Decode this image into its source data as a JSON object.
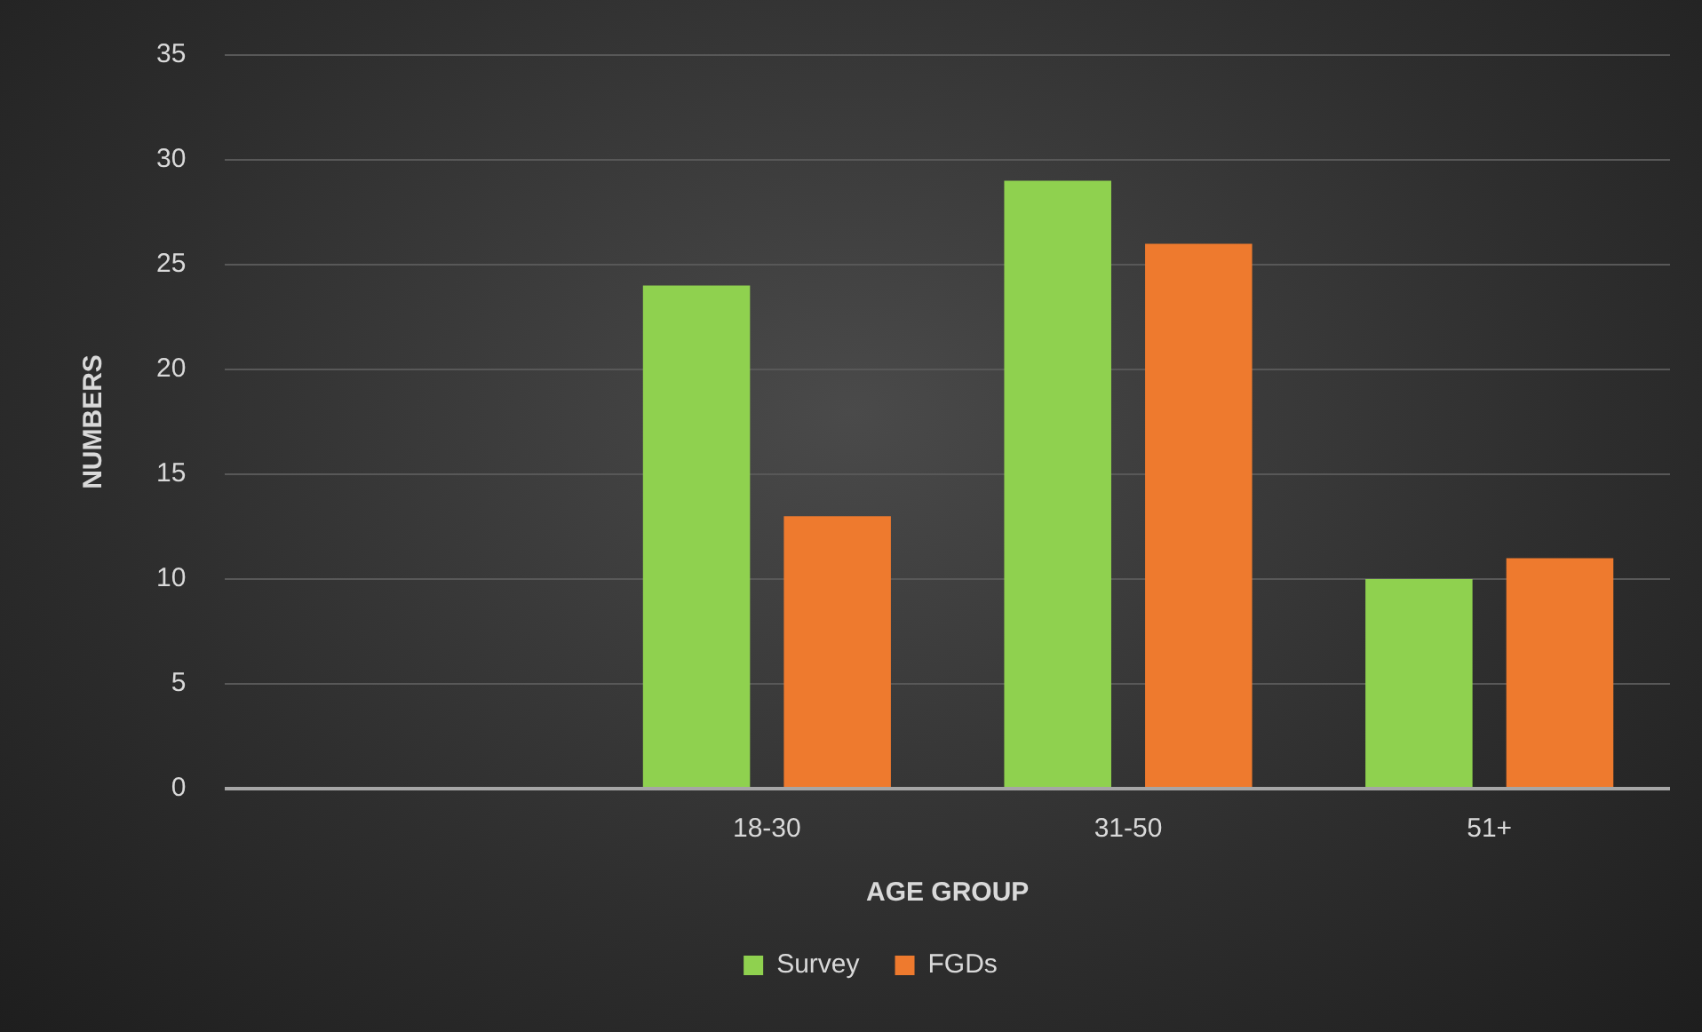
{
  "chart_data": {
    "type": "bar",
    "xlabel": "AGE GROUP",
    "ylabel": "NUMBERS",
    "categories": [
      null,
      "18-30",
      "31-50",
      "51+"
    ],
    "series": [
      {
        "name": "Survey",
        "color": "#8fd14f",
        "values": [
          null,
          24,
          29,
          10
        ]
      },
      {
        "name": "FGDs",
        "color": "#ee7a2e",
        "values": [
          null,
          13,
          26,
          11
        ]
      }
    ],
    "ylim": [
      0,
      35
    ],
    "yticks": [
      0,
      5,
      10,
      15,
      20,
      25,
      30,
      35
    ],
    "grid": "y",
    "legend": "bottom"
  }
}
